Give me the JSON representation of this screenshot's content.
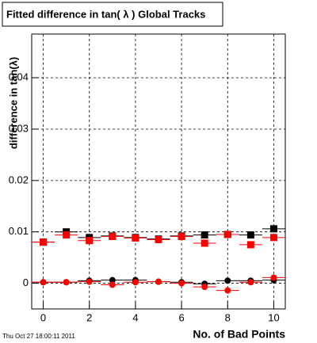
{
  "chart_data": {
    "type": "scatter",
    "title": "Fitted difference in tan( λ )  Global Tracks",
    "x_label": "No. of Bad Points",
    "y_label": "difference in tan(λ)",
    "footer": "Thu Oct 27 18:00:11 2011",
    "x": [
      0,
      1,
      2,
      3,
      4,
      5,
      6,
      7,
      8,
      9,
      10
    ],
    "xerr": 0.5,
    "series": [
      {
        "marker": "square",
        "color": "#000000",
        "values": [
          0.008,
          0.01,
          0.0089,
          0.0092,
          0.0089,
          0.0086,
          0.0092,
          0.0094,
          0.0095,
          0.0094,
          0.0106
        ]
      },
      {
        "marker": "square",
        "color": "#ff0000",
        "values": [
          0.008,
          0.0094,
          0.0083,
          0.0091,
          0.0088,
          0.0085,
          0.0091,
          0.0078,
          0.0095,
          0.0075,
          0.0089
        ]
      },
      {
        "marker": "circle",
        "color": "#000000",
        "values": [
          0.0002,
          0.0002,
          0.0005,
          0.0006,
          0.0006,
          0.0003,
          0.0002,
          -0.0001,
          0.0005,
          0.0005,
          0.0006
        ]
      },
      {
        "marker": "circle",
        "color": "#ff0000",
        "values": [
          0.0002,
          0.0002,
          0.0003,
          -0.0003,
          0.0002,
          0.0003,
          0,
          -0.0007,
          -0.0014,
          0.0002,
          0.0011
        ]
      }
    ],
    "xlim": [
      -0.5,
      10.5
    ],
    "xticks": [
      0,
      2,
      4,
      6,
      8,
      10
    ],
    "ylim": [
      -0.005,
      0.0485
    ],
    "yticks": [
      0,
      0.01,
      0.02,
      0.03,
      0.04
    ],
    "grid": true
  }
}
